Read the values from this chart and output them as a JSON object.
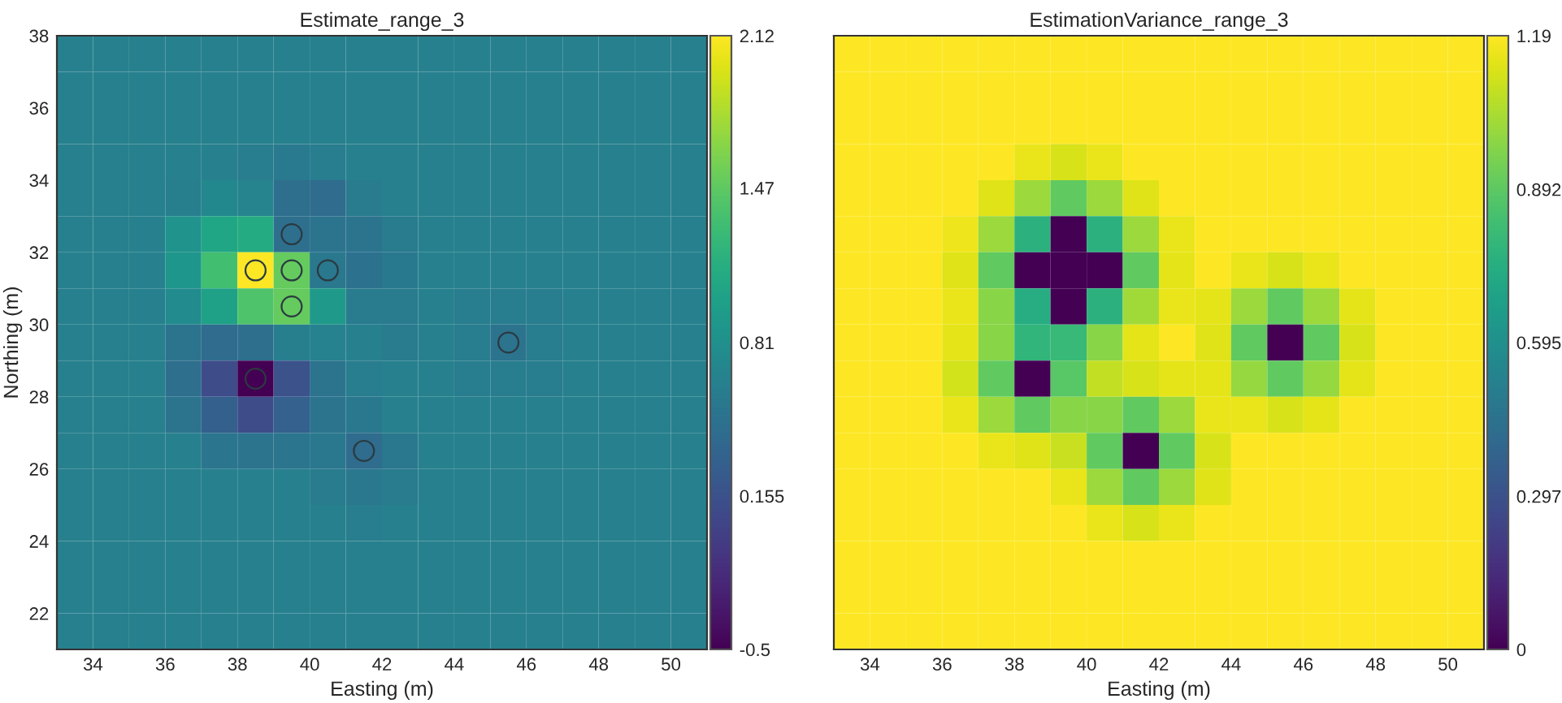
{
  "chart_data": [
    {
      "type": "heatmap",
      "title": "Estimate_range_3",
      "xlabel": "Easting (m)",
      "ylabel": "Northing (m)",
      "xlim": [
        33,
        51
      ],
      "ylim": [
        21,
        38
      ],
      "xticks": [
        34,
        36,
        38,
        40,
        42,
        44,
        46,
        48,
        50
      ],
      "yticks": [
        22,
        24,
        26,
        28,
        30,
        32,
        34,
        36,
        38
      ],
      "clim": [
        -0.5,
        2.12
      ],
      "cticks": [
        -0.5,
        0.155,
        0.81,
        1.47,
        2.12
      ],
      "marker": "circle",
      "cells": [
        [
          0.63,
          0.63,
          0.63,
          0.63,
          0.63,
          0.63,
          0.63,
          0.63,
          0.63,
          0.63,
          0.63,
          0.63,
          0.63,
          0.63,
          0.63,
          0.63,
          0.63,
          0.63
        ],
        [
          0.63,
          0.63,
          0.63,
          0.63,
          0.63,
          0.63,
          0.63,
          0.63,
          0.63,
          0.63,
          0.63,
          0.63,
          0.63,
          0.63,
          0.63,
          0.63,
          0.63,
          0.63
        ],
        [
          0.63,
          0.63,
          0.63,
          0.63,
          0.63,
          0.63,
          0.63,
          0.63,
          0.63,
          0.63,
          0.63,
          0.63,
          0.63,
          0.63,
          0.63,
          0.63,
          0.63,
          0.63
        ],
        [
          0.63,
          0.63,
          0.63,
          0.63,
          0.63,
          0.6,
          0.57,
          0.6,
          0.63,
          0.63,
          0.63,
          0.63,
          0.63,
          0.63,
          0.63,
          0.63,
          0.63,
          0.63
        ],
        [
          0.63,
          0.63,
          0.63,
          0.62,
          0.72,
          0.68,
          0.45,
          0.42,
          0.58,
          0.63,
          0.63,
          0.63,
          0.63,
          0.63,
          0.63,
          0.63,
          0.63,
          0.63
        ],
        [
          0.63,
          0.63,
          0.63,
          0.85,
          1.05,
          1.1,
          0.45,
          0.5,
          0.5,
          0.58,
          0.63,
          0.63,
          0.63,
          0.63,
          0.63,
          0.63,
          0.63,
          0.63
        ],
        [
          0.63,
          0.63,
          0.63,
          0.88,
          1.33,
          2.12,
          1.5,
          0.55,
          0.48,
          0.56,
          0.63,
          0.63,
          0.63,
          0.63,
          0.63,
          0.63,
          0.63,
          0.63
        ],
        [
          0.63,
          0.63,
          0.63,
          0.75,
          1.0,
          1.39,
          1.5,
          0.92,
          0.58,
          0.58,
          0.63,
          0.6,
          0.6,
          0.6,
          0.63,
          0.63,
          0.63,
          0.63
        ],
        [
          0.63,
          0.63,
          0.63,
          0.5,
          0.42,
          0.45,
          0.62,
          0.66,
          0.63,
          0.58,
          0.63,
          0.6,
          0.5,
          0.6,
          0.63,
          0.63,
          0.63,
          0.63
        ],
        [
          0.63,
          0.63,
          0.63,
          0.45,
          0.1,
          -0.5,
          0.155,
          0.5,
          0.6,
          0.63,
          0.63,
          0.6,
          0.6,
          0.6,
          0.63,
          0.63,
          0.63,
          0.63
        ],
        [
          0.63,
          0.63,
          0.63,
          0.5,
          0.29,
          0.1,
          0.3,
          0.5,
          0.55,
          0.63,
          0.63,
          0.63,
          0.63,
          0.63,
          0.63,
          0.63,
          0.63,
          0.63
        ],
        [
          0.63,
          0.63,
          0.63,
          0.63,
          0.52,
          0.5,
          0.52,
          0.55,
          0.42,
          0.55,
          0.63,
          0.63,
          0.63,
          0.63,
          0.63,
          0.63,
          0.63,
          0.63
        ],
        [
          0.63,
          0.63,
          0.63,
          0.63,
          0.63,
          0.63,
          0.63,
          0.58,
          0.55,
          0.58,
          0.63,
          0.63,
          0.63,
          0.63,
          0.63,
          0.63,
          0.63,
          0.63
        ],
        [
          0.63,
          0.63,
          0.63,
          0.63,
          0.63,
          0.63,
          0.63,
          0.63,
          0.6,
          0.63,
          0.63,
          0.63,
          0.63,
          0.63,
          0.63,
          0.63,
          0.63,
          0.63
        ],
        [
          0.63,
          0.63,
          0.63,
          0.63,
          0.63,
          0.63,
          0.63,
          0.63,
          0.63,
          0.63,
          0.63,
          0.63,
          0.63,
          0.63,
          0.63,
          0.63,
          0.63,
          0.63
        ],
        [
          0.63,
          0.63,
          0.63,
          0.63,
          0.63,
          0.63,
          0.63,
          0.63,
          0.63,
          0.63,
          0.63,
          0.63,
          0.63,
          0.63,
          0.63,
          0.63,
          0.63,
          0.63
        ],
        [
          0.63,
          0.63,
          0.63,
          0.63,
          0.63,
          0.63,
          0.63,
          0.63,
          0.63,
          0.63,
          0.63,
          0.63,
          0.63,
          0.63,
          0.63,
          0.63,
          0.63,
          0.63
        ]
      ],
      "series": [
        {
          "type": "scatter",
          "color": "#2b3a40",
          "x": [
            38.5,
            39.5,
            39.5,
            40.5,
            39.5,
            38.5,
            41.5,
            45.5
          ],
          "values": [
            31.5,
            32.5,
            31.5,
            31.5,
            30.5,
            28.5,
            26.5,
            29.5
          ]
        }
      ]
    },
    {
      "type": "heatmap",
      "title": "EstimationVariance_range_3",
      "xlabel": "Easting (m)",
      "xlim": [
        33,
        51
      ],
      "ylim": [
        21,
        38
      ],
      "xticks": [
        34,
        36,
        38,
        40,
        42,
        44,
        46,
        48,
        50
      ],
      "tick_labels": "x",
      "clim": [
        0,
        1.19
      ],
      "cticks": [
        0,
        0.297,
        0.595,
        0.892,
        1.19
      ],
      "cells": [
        [
          1.19,
          1.19,
          1.19,
          1.19,
          1.19,
          1.19,
          1.19,
          1.19,
          1.19,
          1.19,
          1.19,
          1.19,
          1.19,
          1.19,
          1.19,
          1.19,
          1.19,
          1.19
        ],
        [
          1.19,
          1.19,
          1.19,
          1.19,
          1.19,
          1.19,
          1.19,
          1.19,
          1.19,
          1.19,
          1.19,
          1.19,
          1.19,
          1.19,
          1.19,
          1.19,
          1.19,
          1.19
        ],
        [
          1.19,
          1.19,
          1.19,
          1.19,
          1.19,
          1.19,
          1.19,
          1.19,
          1.19,
          1.19,
          1.19,
          1.19,
          1.19,
          1.19,
          1.19,
          1.19,
          1.19,
          1.19
        ],
        [
          1.19,
          1.19,
          1.19,
          1.19,
          1.19,
          1.15,
          1.12,
          1.15,
          1.19,
          1.19,
          1.19,
          1.19,
          1.19,
          1.19,
          1.19,
          1.19,
          1.19,
          1.19
        ],
        [
          1.19,
          1.19,
          1.19,
          1.19,
          1.13,
          1.01,
          0.9,
          1.01,
          1.13,
          1.19,
          1.19,
          1.19,
          1.19,
          1.19,
          1.19,
          1.19,
          1.19,
          1.19
        ],
        [
          1.19,
          1.19,
          1.19,
          1.16,
          1.01,
          0.76,
          0,
          0.76,
          1.01,
          1.15,
          1.19,
          1.19,
          1.19,
          1.19,
          1.19,
          1.19,
          1.19,
          1.19
        ],
        [
          1.19,
          1.19,
          1.19,
          1.13,
          0.9,
          0,
          0,
          0,
          0.9,
          1.14,
          1.19,
          1.15,
          1.12,
          1.15,
          1.19,
          1.19,
          1.19,
          1.19
        ],
        [
          1.19,
          1.19,
          1.19,
          1.15,
          0.98,
          0.74,
          0,
          0.76,
          1.02,
          1.15,
          1.14,
          1.01,
          0.9,
          1.01,
          1.14,
          1.19,
          1.19,
          1.19
        ],
        [
          1.19,
          1.19,
          1.19,
          1.14,
          0.98,
          0.78,
          0.8,
          0.98,
          1.14,
          1.19,
          1.13,
          0.9,
          0,
          0.9,
          1.12,
          1.19,
          1.19,
          1.19
        ],
        [
          1.19,
          1.19,
          1.19,
          1.11,
          0.9,
          0,
          0.88,
          1.08,
          1.12,
          1.14,
          1.14,
          1.0,
          0.9,
          1.0,
          1.14,
          1.19,
          1.19,
          1.19
        ],
        [
          1.19,
          1.19,
          1.19,
          1.15,
          1.01,
          0.9,
          0.98,
          0.98,
          0.9,
          1.01,
          1.15,
          1.15,
          1.12,
          1.14,
          1.19,
          1.19,
          1.19,
          1.19
        ],
        [
          1.19,
          1.19,
          1.19,
          1.19,
          1.15,
          1.13,
          1.09,
          0.9,
          0,
          0.9,
          1.12,
          1.19,
          1.19,
          1.19,
          1.19,
          1.19,
          1.19,
          1.19
        ],
        [
          1.19,
          1.19,
          1.19,
          1.19,
          1.19,
          1.19,
          1.15,
          1.01,
          0.9,
          1.01,
          1.13,
          1.19,
          1.19,
          1.19,
          1.19,
          1.19,
          1.19,
          1.19
        ],
        [
          1.19,
          1.19,
          1.19,
          1.19,
          1.19,
          1.19,
          1.19,
          1.15,
          1.12,
          1.15,
          1.19,
          1.19,
          1.19,
          1.19,
          1.19,
          1.19,
          1.19,
          1.19
        ],
        [
          1.19,
          1.19,
          1.19,
          1.19,
          1.19,
          1.19,
          1.19,
          1.19,
          1.19,
          1.19,
          1.19,
          1.19,
          1.19,
          1.19,
          1.19,
          1.19,
          1.19,
          1.19
        ],
        [
          1.19,
          1.19,
          1.19,
          1.19,
          1.19,
          1.19,
          1.19,
          1.19,
          1.19,
          1.19,
          1.19,
          1.19,
          1.19,
          1.19,
          1.19,
          1.19,
          1.19,
          1.19
        ],
        [
          1.19,
          1.19,
          1.19,
          1.19,
          1.19,
          1.19,
          1.19,
          1.19,
          1.19,
          1.19,
          1.19,
          1.19,
          1.19,
          1.19,
          1.19,
          1.19,
          1.19,
          1.19
        ]
      ]
    }
  ]
}
